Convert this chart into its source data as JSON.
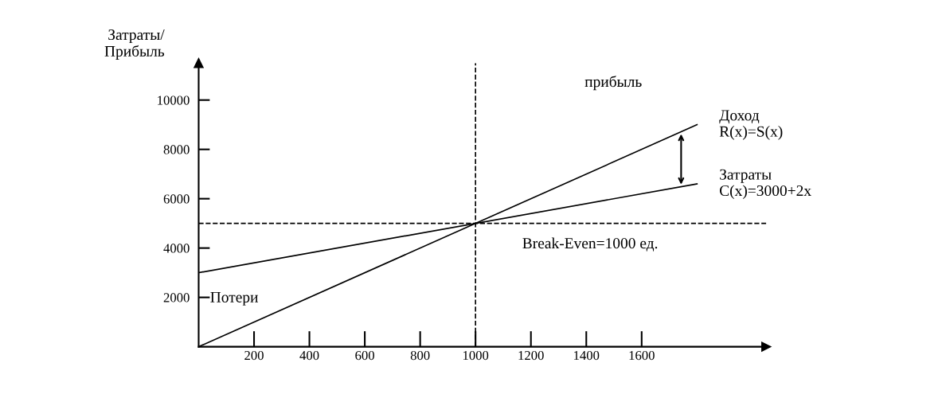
{
  "chart_data": {
    "type": "line",
    "ylabel": "Затраты/\nПрибыль",
    "x": [
      0,
      1800
    ],
    "series": [
      {
        "name": "Доход\nR(x)=S(x)",
        "color": "#000000",
        "values": [
          0,
          9000
        ]
      },
      {
        "name": "Затраты\nC(x)=3000+2x",
        "color": "#000000",
        "values": [
          3000,
          6600
        ]
      }
    ],
    "xlim": [
      0,
      2050
    ],
    "ylim": [
      0,
      11500
    ],
    "xticks": [
      200,
      400,
      600,
      800,
      1000,
      1200,
      1400,
      1600
    ],
    "yticks": [
      2000,
      4000,
      6000,
      8000,
      10000
    ],
    "ref_lines": [
      {
        "axis": "y",
        "value": 5000,
        "line_style": "dashed",
        "color": "#000000"
      },
      {
        "axis": "x",
        "value": 1000,
        "line_style": "dashed",
        "color": "#000000"
      }
    ],
    "annotations": [
      "прибыль",
      "Break-Even=1000 ед.",
      "Потери"
    ],
    "grid": false,
    "marker": "none",
    "line_style": "solid"
  }
}
